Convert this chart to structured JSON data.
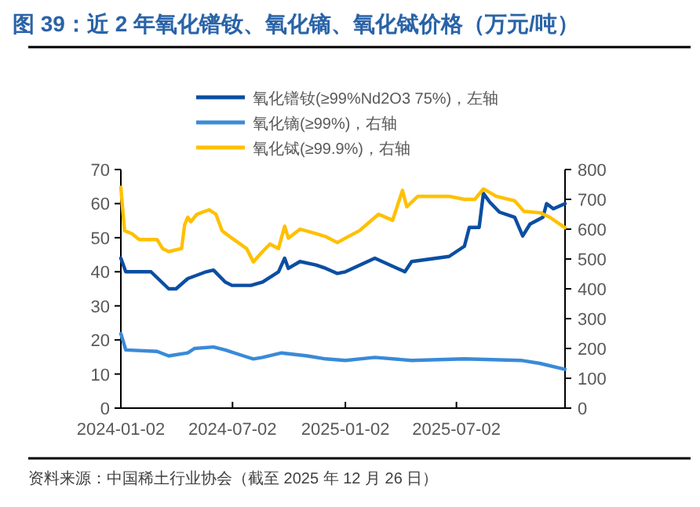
{
  "chart_data": {
    "type": "line",
    "title": "图 39：近 2 年氧化镨钕、氧化镝、氧化铽价格（万元/吨）",
    "annotations": [
      "资料来源：中国稀土行业协会（截至 2025 年 12 月 26 日）"
    ],
    "xlim": [
      "2024-01-02",
      "2025-12-26"
    ],
    "xticks": [
      "2024-01-02",
      "2024-07-02",
      "2025-01-02",
      "2025-07-02"
    ],
    "ylim": [
      0,
      70
    ],
    "yticks": [
      0,
      10,
      20,
      30,
      40,
      50,
      60,
      70
    ],
    "y2lim": [
      0,
      800
    ],
    "y2ticks": [
      0,
      100,
      200,
      300,
      400,
      500,
      600,
      700,
      800
    ],
    "legend": "top",
    "grid": false,
    "marker": "none",
    "line_style": "solid",
    "series": [
      {
        "name": "氧化镨钕(≥99%Nd2O3 75%)，左轴",
        "color": "#0b4ea2",
        "axis": "y",
        "x": [
          "2024-01-02",
          "2024-01-10",
          "2024-02-20",
          "2024-03-20",
          "2024-04-01",
          "2024-04-20",
          "2024-05-20",
          "2024-06-01",
          "2024-06-20",
          "2024-07-01",
          "2024-08-01",
          "2024-08-20",
          "2024-09-15",
          "2024-09-25",
          "2024-10-01",
          "2024-10-20",
          "2024-11-15",
          "2024-12-01",
          "2024-12-20",
          "2025-01-02",
          "2025-02-19",
          "2025-04-09",
          "2025-04-20",
          "2025-06-20",
          "2025-07-15",
          "2025-07-23",
          "2025-08-08",
          "2025-08-15",
          "2025-08-25",
          "2025-09-10",
          "2025-10-05",
          "2025-10-18",
          "2025-10-30",
          "2025-11-20",
          "2025-11-26",
          "2025-12-07",
          "2025-12-26"
        ],
        "values": [
          44,
          40,
          40,
          35,
          35,
          38,
          40,
          40.5,
          37,
          36,
          36,
          37,
          40,
          44,
          41,
          43,
          42,
          41,
          39.5,
          40,
          44,
          40,
          43,
          44.5,
          47.5,
          53,
          53,
          63,
          60.5,
          57.5,
          56,
          50.5,
          54,
          56,
          60,
          58.5,
          60
        ]
      },
      {
        "name": "氧化镝(≥99%)，右轴",
        "color": "#3a8ad8",
        "axis": "y2",
        "x": [
          "2024-01-02",
          "2024-01-10",
          "2024-03-01",
          "2024-03-20",
          "2024-04-20",
          "2024-05-01",
          "2024-06-01",
          "2024-06-20",
          "2024-07-20",
          "2024-08-05",
          "2024-08-20",
          "2024-09-20",
          "2024-11-01",
          "2024-12-01",
          "2025-01-02",
          "2025-02-19",
          "2025-04-20",
          "2025-07-15",
          "2025-10-15",
          "2025-11-15",
          "2025-12-26"
        ],
        "values": [
          250,
          195,
          190,
          175,
          185,
          200,
          205,
          195,
          175,
          165,
          170,
          185,
          175,
          165,
          160,
          170,
          160,
          165,
          160,
          150,
          130
        ]
      },
      {
        "name": "氧化铽(≥99.9%)，右轴",
        "color": "#ffc000",
        "axis": "y2",
        "x": [
          "2024-01-02",
          "2024-01-08",
          "2024-01-20",
          "2024-02-01",
          "2024-03-01",
          "2024-03-10",
          "2024-03-20",
          "2024-04-10",
          "2024-04-15",
          "2024-04-20",
          "2024-04-25",
          "2024-05-05",
          "2024-05-25",
          "2024-06-05",
          "2024-06-15",
          "2024-07-01",
          "2024-07-25",
          "2024-08-05",
          "2024-08-20",
          "2024-09-01",
          "2024-09-15",
          "2024-09-25",
          "2024-10-01",
          "2024-10-20",
          "2024-11-15",
          "2024-12-01",
          "2024-12-20",
          "2025-01-02",
          "2025-01-25",
          "2025-02-25",
          "2025-03-20",
          "2025-04-05",
          "2025-04-12",
          "2025-04-30",
          "2025-06-20",
          "2025-07-15",
          "2025-08-01",
          "2025-08-15",
          "2025-09-05",
          "2025-10-05",
          "2025-10-20",
          "2025-11-15",
          "2025-12-01",
          "2025-12-26"
        ],
        "values": [
          740,
          595,
          585,
          565,
          565,
          535,
          525,
          535,
          615,
          640,
          625,
          650,
          665,
          650,
          595,
          570,
          535,
          490,
          525,
          550,
          535,
          610,
          570,
          600,
          585,
          575,
          555,
          570,
          595,
          650,
          630,
          730,
          675,
          710,
          710,
          700,
          700,
          735,
          710,
          695,
          660,
          655,
          640,
          605
        ]
      }
    ]
  }
}
